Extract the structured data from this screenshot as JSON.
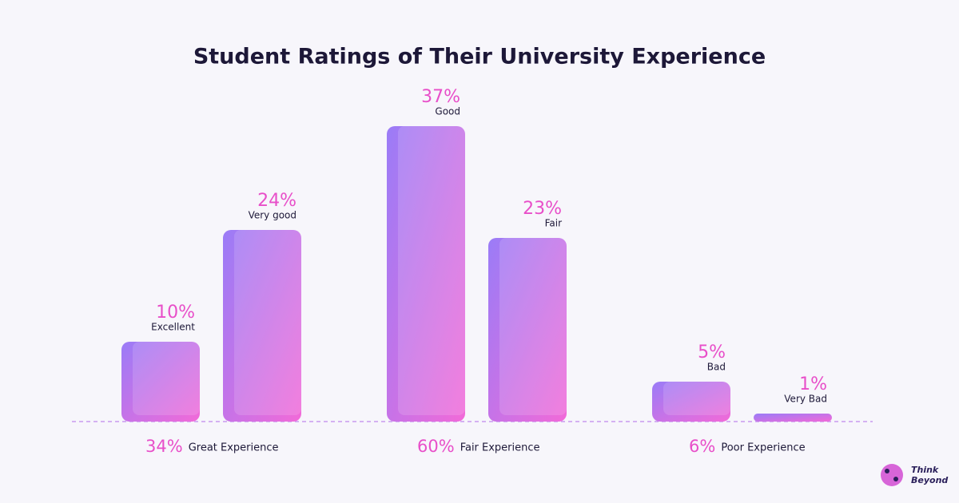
{
  "chart_data": {
    "type": "bar",
    "title": "Student Ratings of Their University Experience",
    "categories": [
      "Excellent",
      "Very good",
      "Good",
      "Fair",
      "Bad",
      "Very Bad"
    ],
    "values": [
      10,
      24,
      37,
      23,
      5,
      1
    ],
    "value_labels": [
      "10%",
      "24%",
      "37%",
      "23%",
      "5%",
      "1%"
    ],
    "groups": [
      {
        "name": "Great Experience",
        "value": 34,
        "value_label": "34%"
      },
      {
        "name": "Fair Experience",
        "value": 60,
        "value_label": "60%"
      },
      {
        "name": "Poor Experience",
        "value": 6,
        "value_label": "6%"
      }
    ],
    "brand": [
      "Think",
      "Beyond"
    ]
  }
}
